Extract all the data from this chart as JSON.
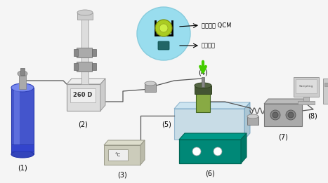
{
  "bg_color": "#f5f5f5",
  "labels": {
    "1": "(1)",
    "2": "(2)",
    "3": "(3)",
    "4": "(4)",
    "5": "(5)",
    "6": "(6)",
    "7": "(7)",
    "8": "(8)"
  },
  "annotation1": "전기도금 QCM",
  "annotation2": "교반막대",
  "device2_text": "260 D",
  "device3_text": "°C",
  "cylinder_blue": "#4455cc",
  "cylinder_highlight": "#7788ee",
  "cylinder_dark": "#2233aa",
  "teal_color": "#008877",
  "bath_color": "#aaccdd",
  "bubble_color": "#99ddee",
  "gray_light": "#dddddd",
  "gray_mid": "#bbbbbb",
  "gray_dark": "#999999",
  "vessel_green": "#558833",
  "vessel_green2": "#88aa44",
  "arrow_green": "#44cc00"
}
